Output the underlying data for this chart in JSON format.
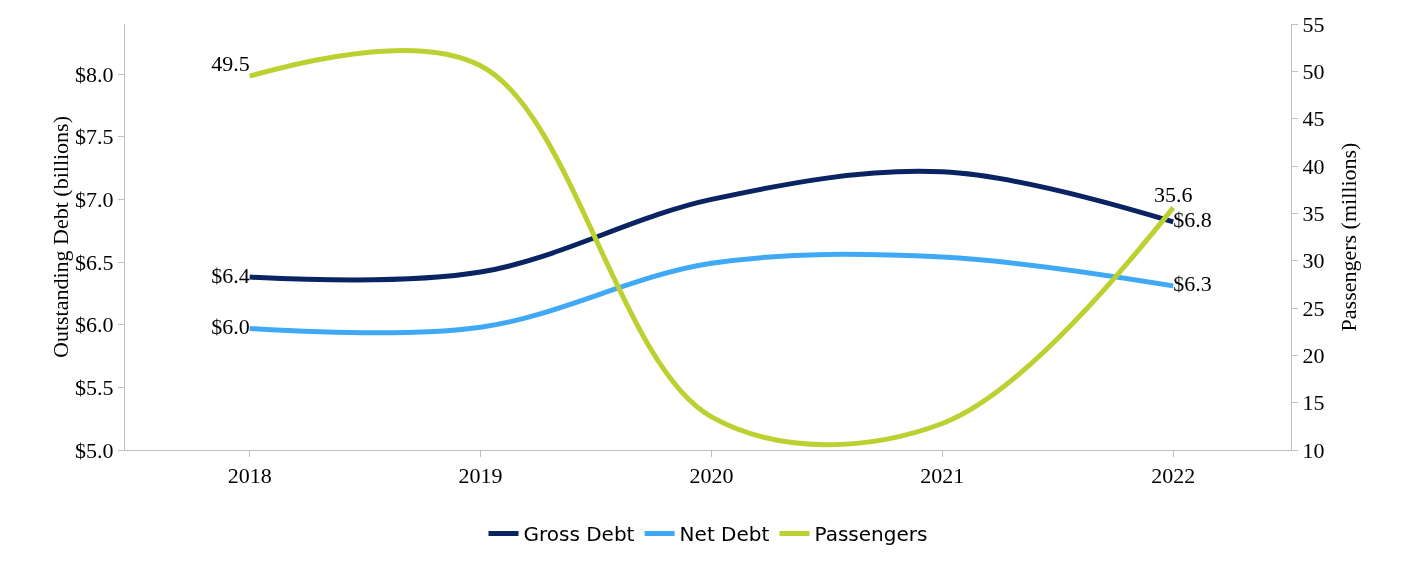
{
  "chart_data": {
    "type": "line",
    "ylabel": "Outstanding Debt (billions)",
    "y2label": "Passengers (millions)",
    "categories": [
      "2018",
      "2019",
      "2020",
      "2021",
      "2022"
    ],
    "series": [
      {
        "name": "Gross Debt",
        "color": "#0a2463",
        "values": [
          6.38,
          6.42,
          7.0,
          7.22,
          6.82
        ],
        "value_labels": [
          "$6.4",
          null,
          null,
          null,
          "$6.8"
        ]
      },
      {
        "name": "Net Debt",
        "color": "#3fa9f5",
        "values": [
          5.97,
          5.98,
          6.49,
          6.54,
          6.31
        ],
        "value_labels": [
          "$6.0",
          null,
          null,
          null,
          "$6.3"
        ]
      },
      {
        "name": "Passengers",
        "color": "#bcd131",
        "axis": "y2",
        "values": [
          49.5,
          50.6,
          13.5,
          12.8,
          35.6
        ],
        "value_labels": [
          "49.5",
          null,
          null,
          null,
          "35.6"
        ]
      }
    ],
    "ylim": [
      5,
      8.4
    ],
    "yticks": [
      {
        "value": 5,
        "label": "$5.0"
      },
      {
        "value": 5.5,
        "label": "$5.5"
      },
      {
        "value": 6,
        "label": "$6.0"
      },
      {
        "value": 6.5,
        "label": "$6.5"
      },
      {
        "value": 7,
        "label": "$7.0"
      },
      {
        "value": 7.5,
        "label": "$7.5"
      },
      {
        "value": 8,
        "label": "$8.0"
      }
    ],
    "y2lim": [
      10,
      55
    ],
    "y2ticks": [
      10,
      15,
      20,
      25,
      30,
      35,
      40,
      45,
      50,
      55
    ],
    "grid": false,
    "legend": "bottom",
    "marker": "none",
    "line_style": "solid"
  }
}
